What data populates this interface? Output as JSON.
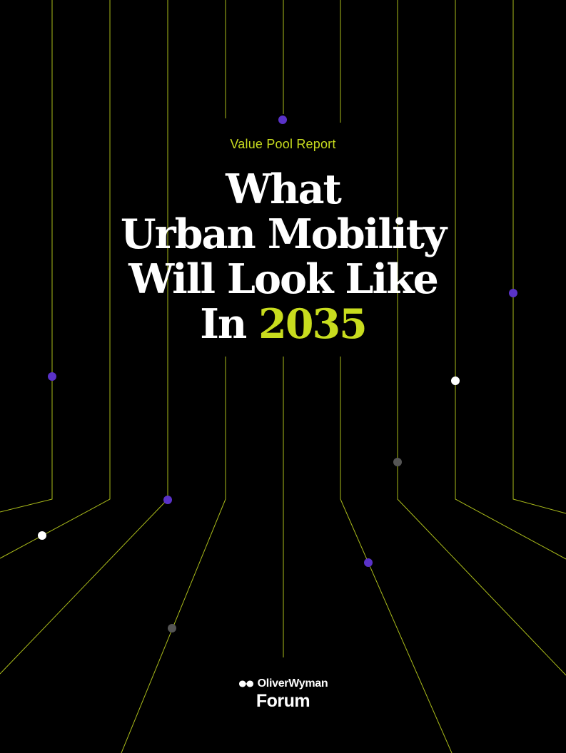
{
  "cover": {
    "eyebrow": "Value Pool Report",
    "title_lines": [
      "What",
      "Urban Mobility",
      "Will Look Like"
    ],
    "title_last_prefix": "In",
    "title_year": "2035"
  },
  "logo": {
    "brand": "OliverWyman",
    "sub": "Forum",
    "mark_icon": "oliver-wyman-mark-icon"
  },
  "colors": {
    "background": "#000000",
    "accent": "#c8dc1e",
    "dot_purple": "#5a32c8",
    "dot_white": "#ffffff",
    "dot_gray": "#555555"
  }
}
